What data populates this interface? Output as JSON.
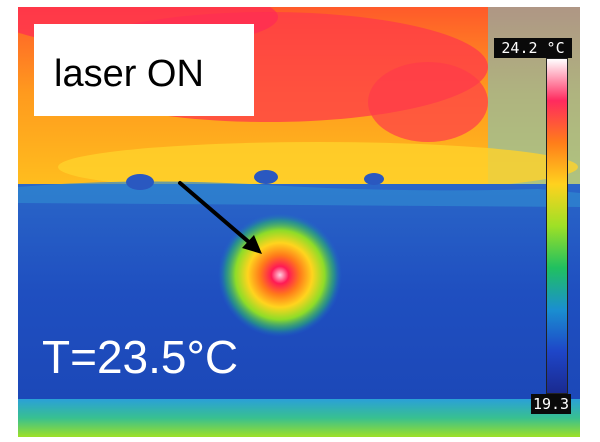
{
  "image": {
    "annotation_label": "laser ON",
    "temperature_label": "T=23.5°C",
    "scale": {
      "max_label": "24.2 °C",
      "min_label": "19.3",
      "colors": [
        "#ffffff",
        "#ff2a5e",
        "#ff7d1a",
        "#ffd21e",
        "#9ee026",
        "#20c060",
        "#1a8fd0",
        "#1e46c8",
        "#1a2a90"
      ]
    },
    "hot_spot_color": "#ff1a55",
    "arrow_color": "#000000"
  }
}
